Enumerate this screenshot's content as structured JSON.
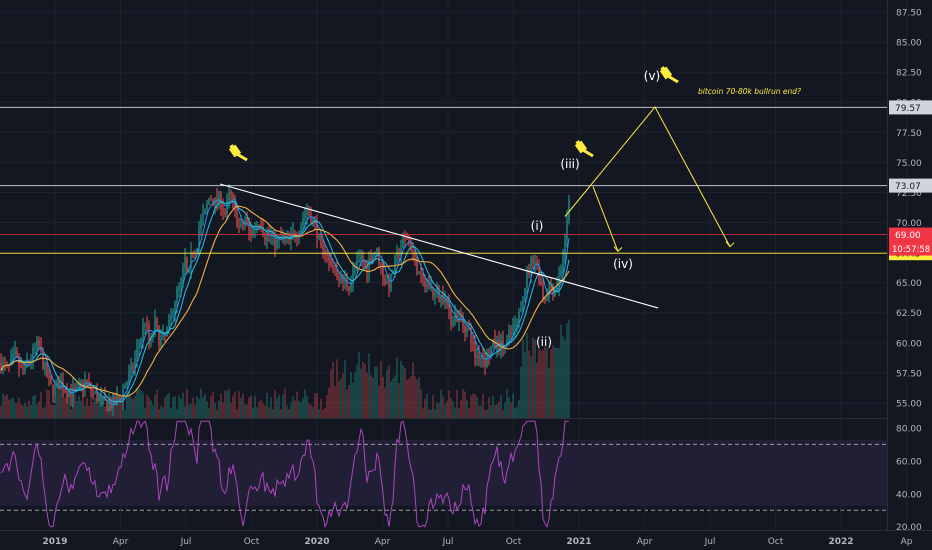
{
  "chart_data": {
    "type": "candlestick",
    "price_axis": {
      "ticks": [
        "87.50",
        "85.00",
        "82.50",
        "80.00",
        "77.50",
        "75.00",
        "72.50",
        "70.00",
        "67.50",
        "65.00",
        "62.50",
        "60.00",
        "57.50",
        "55.00"
      ],
      "ylim": [
        53.75,
        88.0
      ]
    },
    "price_levels": [
      {
        "label": "79.57",
        "value": 79.57,
        "color": "#d1d4dc",
        "text_color": "#131722"
      },
      {
        "label": "73.07",
        "value": 73.07,
        "color": "#d1d4dc",
        "text_color": "#131722"
      },
      {
        "label": "69.00",
        "value": 69.0,
        "color": "#f23645",
        "text_color": "#ffffff"
      },
      {
        "label": "67.45",
        "value": 67.45,
        "color": "#ffeb3b",
        "text_color": "#131722"
      }
    ],
    "countdown_label": "10:57:58",
    "time_axis": {
      "labels": [
        "2019",
        "Apr",
        "Jul",
        "Oct",
        "2020",
        "Apr",
        "Jul",
        "Oct",
        "2021",
        "Apr",
        "Jul",
        "Oct",
        "2022",
        "Ap"
      ]
    },
    "rsi_axis": {
      "ticks": [
        "80.00",
        "60.00",
        "40.00",
        "20.00"
      ],
      "ylim": [
        18,
        86
      ],
      "overbought": 70,
      "oversold": 30
    },
    "wave_labels": [
      "(i)",
      "(ii)",
      "(iii)",
      "(iv)",
      "(v)"
    ],
    "annotation": "bitcoin 70-80k bullrun end?",
    "price_series": [
      [
        0,
        58.3
      ],
      [
        8,
        57.8
      ],
      [
        15,
        58.9
      ],
      [
        22,
        57.5
      ],
      [
        30,
        58.6
      ],
      [
        38,
        59.9
      ],
      [
        44,
        58.0
      ],
      [
        52,
        56.0
      ],
      [
        60,
        56.6
      ],
      [
        68,
        56.0
      ],
      [
        76,
        55.8
      ],
      [
        84,
        56.8
      ],
      [
        92,
        56.0
      ],
      [
        100,
        55.2
      ],
      [
        108,
        54.8
      ],
      [
        115,
        55.0
      ],
      [
        120,
        55.5
      ],
      [
        126,
        56.7
      ],
      [
        132,
        57.7
      ],
      [
        138,
        59.6
      ],
      [
        145,
        61.8
      ],
      [
        150,
        59.8
      ],
      [
        155,
        61.6
      ],
      [
        160,
        60.0
      ],
      [
        166,
        60.8
      ],
      [
        170,
        61.6
      ],
      [
        176,
        64.0
      ],
      [
        180,
        64.6
      ],
      [
        185,
        66.8
      ],
      [
        188,
        65.0
      ],
      [
        192,
        67.8
      ],
      [
        196,
        67.8
      ],
      [
        200,
        70.0
      ],
      [
        205,
        70.7
      ],
      [
        210,
        72.3
      ],
      [
        214,
        71.6
      ],
      [
        220,
        72.0
      ],
      [
        225,
        70.7
      ],
      [
        230,
        72.5
      ],
      [
        235,
        70.8
      ],
      [
        240,
        69.3
      ],
      [
        245,
        70.2
      ],
      [
        250,
        69.0
      ],
      [
        256,
        69.8
      ],
      [
        260,
        70.3
      ],
      [
        265,
        68.9
      ],
      [
        270,
        69.0
      ],
      [
        276,
        68.2
      ],
      [
        282,
        68.8
      ],
      [
        288,
        68.3
      ],
      [
        293,
        68.9
      ],
      [
        298,
        69.3
      ],
      [
        302,
        70.2
      ],
      [
        306,
        71.0
      ],
      [
        312,
        70.3
      ],
      [
        318,
        69.0
      ],
      [
        322,
        67.1
      ],
      [
        326,
        68.0
      ],
      [
        330,
        66.2
      ],
      [
        334,
        66.4
      ],
      [
        340,
        65.3
      ],
      [
        345,
        65.0
      ],
      [
        350,
        64.8
      ],
      [
        354,
        66.2
      ],
      [
        358,
        66.5
      ],
      [
        362,
        67.2
      ],
      [
        366,
        66.0
      ],
      [
        370,
        67.2
      ],
      [
        376,
        67.8
      ],
      [
        380,
        66.7
      ],
      [
        385,
        65.1
      ],
      [
        390,
        64.8
      ],
      [
        394,
        66.5
      ],
      [
        398,
        67.3
      ],
      [
        402,
        68.2
      ],
      [
        407,
        68.7
      ],
      [
        412,
        67.8
      ],
      [
        416,
        66.5
      ],
      [
        420,
        65.3
      ],
      [
        425,
        64.8
      ],
      [
        430,
        64.6
      ],
      [
        435,
        64.0
      ],
      [
        440,
        63.7
      ],
      [
        445,
        64.0
      ],
      [
        450,
        61.9
      ],
      [
        455,
        62.3
      ],
      [
        460,
        61.8
      ],
      [
        465,
        61.4
      ],
      [
        470,
        60.9
      ],
      [
        475,
        58.9
      ],
      [
        480,
        59.1
      ],
      [
        485,
        58.5
      ],
      [
        490,
        59.5
      ],
      [
        495,
        59.9
      ],
      [
        500,
        59.8
      ],
      [
        505,
        59.6
      ],
      [
        510,
        60.6
      ],
      [
        515,
        61.3
      ],
      [
        518,
        61.8
      ],
      [
        522,
        63.9
      ],
      [
        526,
        65.2
      ],
      [
        530,
        66.5
      ],
      [
        534,
        67.3
      ],
      [
        538,
        66.0
      ],
      [
        541,
        64.8
      ],
      [
        544,
        63.6
      ],
      [
        547,
        64.2
      ],
      [
        550,
        64.7
      ],
      [
        553,
        64.4
      ],
      [
        556,
        64.6
      ],
      [
        559,
        65.4
      ],
      [
        562,
        66.8
      ],
      [
        565,
        68.1
      ],
      [
        568,
        70.7
      ],
      [
        570,
        73.5
      ]
    ],
    "resistance_lines": [
      {
        "from": [
          220,
          73.2
        ],
        "to": [
          658,
          62.9
        ],
        "color": "#ffffff"
      }
    ],
    "projection_path": [
      [
        565,
        70.5
      ],
      [
        655,
        79.6
      ],
      [
        730,
        68.0
      ]
    ],
    "projection_path_2": [
      [
        593,
        73.0
      ],
      [
        618,
        67.6
      ]
    ]
  }
}
